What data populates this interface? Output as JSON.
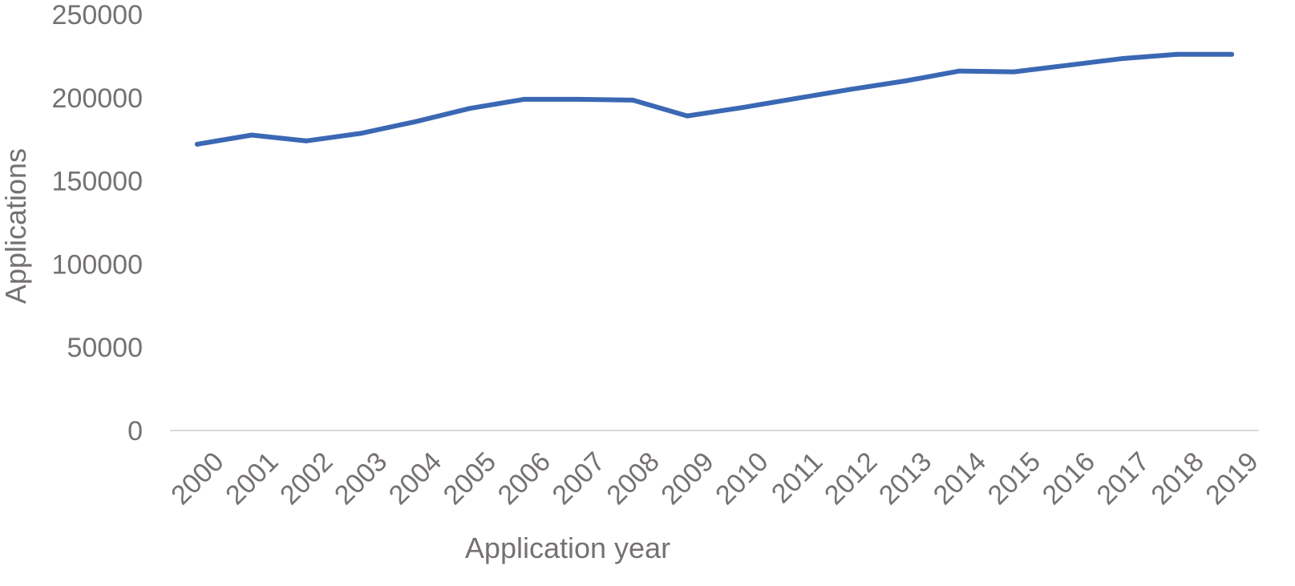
{
  "chart_data": {
    "type": "line",
    "title": "",
    "xlabel": "Application year",
    "ylabel": "Applications",
    "x": [
      "2000",
      "2001",
      "2002",
      "2003",
      "2004",
      "2005",
      "2006",
      "2007",
      "2008",
      "2009",
      "2010",
      "2011",
      "2012",
      "2013",
      "2014",
      "2015",
      "2016",
      "2017",
      "2018",
      "2019"
    ],
    "series": [
      {
        "values": [
          172000,
          177500,
          174000,
          178500,
          185500,
          193500,
          199000,
          199000,
          198500,
          189000,
          194000,
          199500,
          205000,
          210000,
          216000,
          215500,
          219500,
          223500,
          226000,
          226000
        ],
        "color": "#3b68b4"
      }
    ],
    "yticks": [
      "0",
      "50000",
      "100000",
      "150000",
      "200000",
      "250000"
    ],
    "ylim": [
      0,
      250000
    ],
    "grid": false,
    "legend": "none",
    "colors": {
      "line": "#3b68b4",
      "axis_text": "#767171",
      "axis_line": "#d9d9d9"
    }
  }
}
